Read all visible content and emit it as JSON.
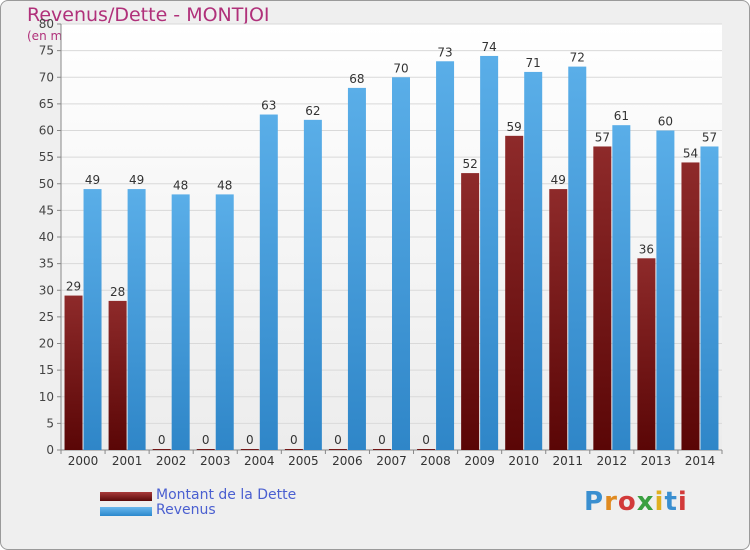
{
  "title": "Revenus/Dette - MONTJOI",
  "subtitle": "(en milliers d'€)",
  "logo_text": "Proxiti",
  "colors": {
    "dette": "#7a1a1a",
    "revenus": "#3b9de0",
    "title": "#b0307a",
    "legend_text": "#4a5fd0"
  },
  "chart_data": {
    "type": "bar",
    "categories": [
      "2000",
      "2001",
      "2002",
      "2003",
      "2004",
      "2005",
      "2006",
      "2007",
      "2008",
      "2009",
      "2010",
      "2011",
      "2012",
      "2013",
      "2014"
    ],
    "series": [
      {
        "name": "Montant de la Dette",
        "values": [
          29,
          28,
          0,
          0,
          0,
          0,
          0,
          0,
          0,
          52,
          59,
          49,
          57,
          36,
          54
        ]
      },
      {
        "name": "Revenus",
        "values": [
          49,
          49,
          48,
          48,
          63,
          62,
          68,
          70,
          73,
          74,
          71,
          72,
          61,
          60,
          57
        ]
      }
    ],
    "ylim": [
      0,
      80
    ],
    "yticks": [
      0,
      5,
      10,
      15,
      20,
      25,
      30,
      35,
      40,
      45,
      50,
      55,
      60,
      65,
      70,
      75,
      80
    ],
    "grid": true,
    "legend_position": "bottom-left"
  }
}
